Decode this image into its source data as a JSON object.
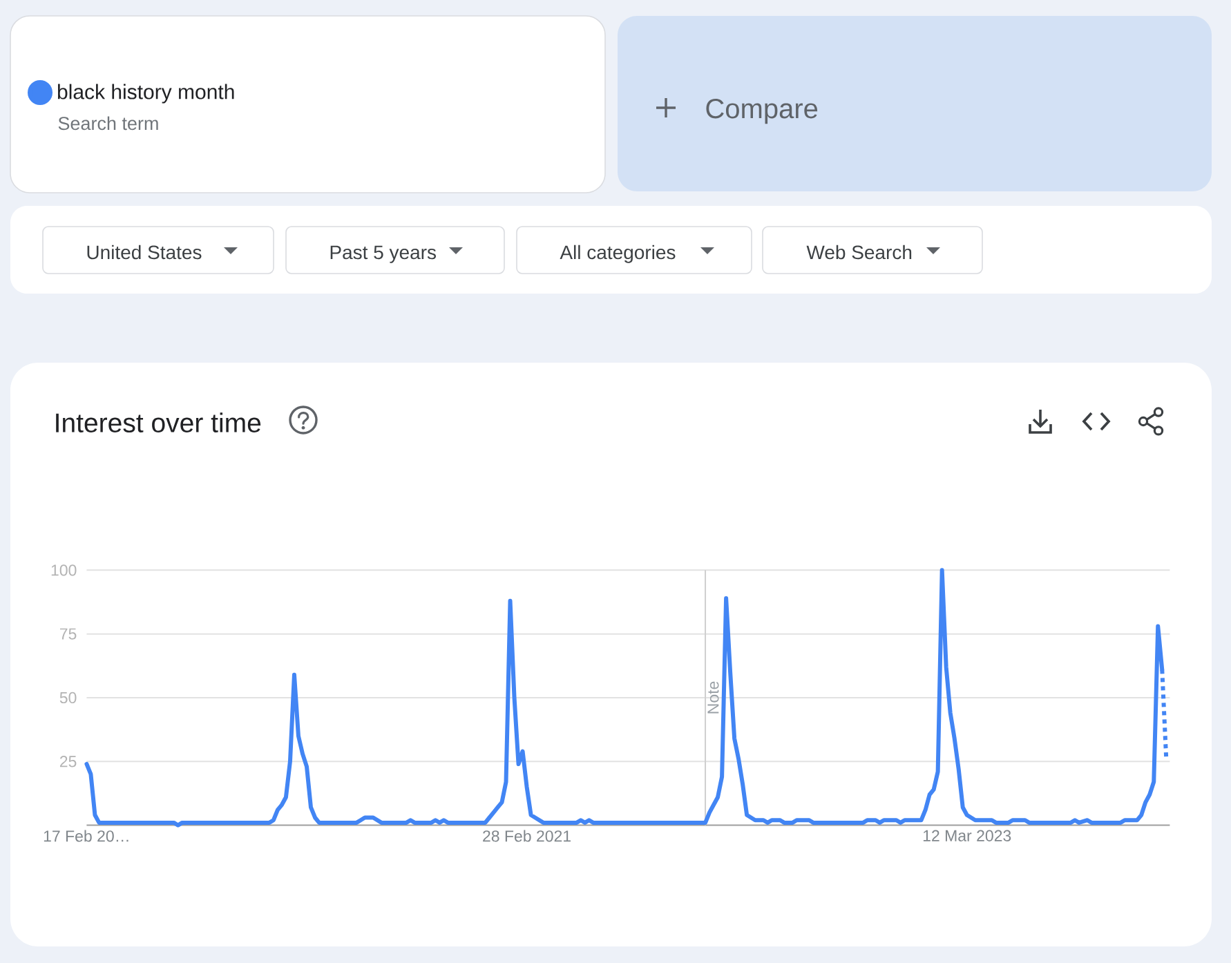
{
  "chart_data": {
    "type": "line",
    "title": "Interest over time",
    "annotations": [
      "Search term",
      "Compare",
      "United States",
      "Past 5 years",
      "All categories",
      "Web Search"
    ],
    "series": [
      {
        "name": "black history month",
        "color": "#4285f4",
        "x": [
          "2019-02-17",
          "2019-02-24",
          "2019-03-03",
          "2019-03-10",
          "2019-07-14",
          "2019-07-21",
          "2019-07-28",
          "2019-12-22",
          "2019-12-29",
          "2020-01-05",
          "2020-01-12",
          "2020-01-19",
          "2020-01-26",
          "2020-02-02",
          "2020-02-09",
          "2020-02-16",
          "2020-02-23",
          "2020-03-01",
          "2020-03-08",
          "2020-03-15",
          "2020-05-17",
          "2020-05-24",
          "2020-05-31",
          "2020-06-14",
          "2020-06-21",
          "2020-06-28",
          "2020-08-09",
          "2020-08-16",
          "2020-08-23",
          "2020-09-20",
          "2020-09-27",
          "2020-10-04",
          "2020-10-11",
          "2020-10-18",
          "2020-12-20",
          "2020-12-27",
          "2021-01-03",
          "2021-01-10",
          "2021-01-17",
          "2021-01-24",
          "2021-01-31",
          "2021-02-07",
          "2021-02-14",
          "2021-02-21",
          "2021-02-28",
          "2021-03-07",
          "2021-03-14",
          "2021-03-21",
          "2021-03-28",
          "2021-05-23",
          "2021-05-30",
          "2021-06-06",
          "2021-06-13",
          "2021-06-20",
          "2021-12-26",
          "2022-01-02",
          "2022-01-09",
          "2022-01-16",
          "2022-01-23",
          "2022-01-30",
          "2022-02-06",
          "2022-02-13",
          "2022-02-20",
          "2022-02-27",
          "2022-03-06",
          "2022-03-13",
          "2022-03-20",
          "2022-04-03",
          "2022-04-10",
          "2022-04-17",
          "2022-05-01",
          "2022-05-08",
          "2022-05-22",
          "2022-05-29",
          "2022-06-19",
          "2022-06-26",
          "2022-09-18",
          "2022-09-25",
          "2022-10-09",
          "2022-10-16",
          "2022-10-23",
          "2022-11-13",
          "2022-11-20",
          "2022-11-27",
          "2022-12-25",
          "2023-01-01",
          "2023-01-08",
          "2023-01-15",
          "2023-01-22",
          "2023-01-29",
          "2023-02-05",
          "2023-02-12",
          "2023-02-19",
          "2023-02-26",
          "2023-03-05",
          "2023-03-12",
          "2023-03-19",
          "2023-03-26",
          "2023-04-23",
          "2023-04-30",
          "2023-05-21",
          "2023-05-28",
          "2023-06-18",
          "2023-06-25",
          "2023-09-03",
          "2023-09-10",
          "2023-09-17",
          "2023-10-01",
          "2023-10-08",
          "2023-11-26",
          "2023-12-03",
          "2023-12-24",
          "2023-12-31",
          "2024-01-07",
          "2024-01-14",
          "2024-01-21",
          "2024-01-28",
          "2024-02-04"
        ],
        "values": [
          24,
          20,
          4,
          1,
          1,
          0,
          1,
          1,
          2,
          6,
          8,
          11,
          25,
          59,
          35,
          28,
          23,
          7,
          3,
          1,
          1,
          2,
          3,
          3,
          2,
          1,
          1,
          2,
          1,
          1,
          2,
          1,
          2,
          1,
          1,
          3,
          5,
          7,
          9,
          17,
          88,
          50,
          24,
          29,
          15,
          4,
          3,
          2,
          1,
          1,
          2,
          1,
          2,
          1,
          1,
          5,
          8,
          11,
          19,
          89,
          60,
          34,
          26,
          16,
          4,
          3,
          2,
          2,
          1,
          2,
          2,
          1,
          1,
          2,
          2,
          1,
          1,
          2,
          2,
          1,
          2,
          2,
          1,
          2,
          2,
          6,
          12,
          14,
          21,
          100,
          62,
          44,
          34,
          22,
          7,
          4,
          3,
          2,
          2,
          1,
          1,
          2,
          2,
          1,
          1,
          2,
          1,
          2,
          1,
          1,
          2,
          2,
          4,
          9,
          12,
          17,
          78,
          61
        ]
      },
      {
        "color": "#4285f4",
        "line_style": "dotted",
        "x": [
          "2024-02-04",
          "2024-02-11"
        ],
        "values": [
          61,
          26
        ]
      }
    ],
    "xlim": [
      "2019-02-17",
      "2024-02-17"
    ],
    "xticks": [
      {
        "value": "2019-02-17",
        "label": "17 Feb 20…"
      },
      {
        "value": "2021-02-28",
        "label": "28 Feb 2021"
      },
      {
        "value": "2023-03-12",
        "label": "12 Mar 2023"
      }
    ],
    "ylim": [
      0,
      100
    ],
    "yticks": [
      25,
      50,
      75,
      100
    ],
    "grid": "y",
    "legend": "top left",
    "line_style": "solid",
    "ref_lines": [
      {
        "axis": "x",
        "value": "2021-12-26",
        "label": "Note",
        "color": "#cfcfcf"
      }
    ]
  }
}
